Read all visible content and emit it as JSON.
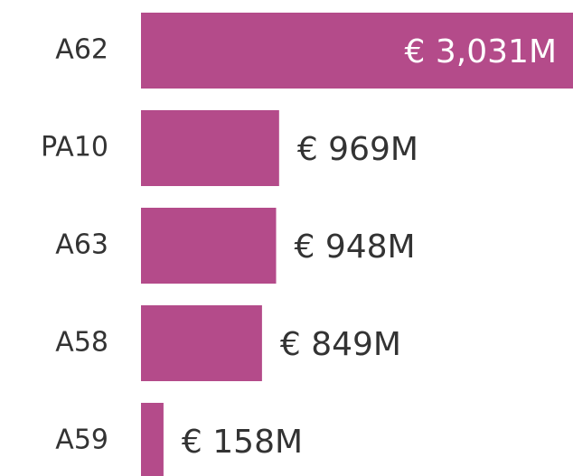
{
  "chart_data": {
    "type": "bar",
    "orientation": "horizontal",
    "color": "#b44b8a",
    "categories": [
      "A62",
      "PA10",
      "A63",
      "A58",
      "A59"
    ],
    "values": [
      3031,
      969,
      948,
      849,
      158
    ],
    "value_labels": [
      "€ 3,031M",
      "€ 969M",
      "€ 948M",
      "€ 849M",
      "€ 158M"
    ]
  }
}
